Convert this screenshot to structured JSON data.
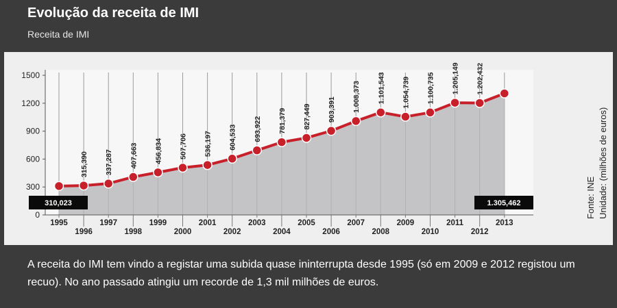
{
  "header": {
    "title": "Evolução da receita de IMI",
    "subtitle": "Receita de IMI"
  },
  "source": {
    "label": "Fonte: INE",
    "unit": "Unidade: (milhões de euros)"
  },
  "caption": "A receita do IMI tem vindo a registar uma subida quase ininterrupta desde 1995 (só em 2009 e 2012 registou um recuo). No ano passado atingiu um recorde de 1,3 mil milhões de euros.",
  "colors": {
    "background": "#3b3b3b",
    "panel": "#efefef",
    "area": "#c4c4c7",
    "line": "#c8202a",
    "marker": "#c8202a",
    "label_box": "#0a0a0a"
  },
  "chart_data": {
    "type": "area",
    "categories": [
      "1995",
      "1996",
      "1997",
      "1998",
      "1999",
      "2000",
      "2001",
      "2002",
      "2003",
      "2004",
      "2005",
      "2006",
      "2007",
      "2008",
      "2009",
      "2010",
      "2011",
      "2012",
      "2013"
    ],
    "series": [
      {
        "values": [
          310.023,
          315.39,
          337.287,
          407.663,
          456.834,
          507.706,
          536.197,
          604.533,
          693.922,
          781.379,
          827.449,
          903.391,
          1008.373,
          1101.543,
          1054.739,
          1100.735,
          1205.149,
          1202.432,
          1305.462
        ]
      }
    ],
    "data_labels": [
      "310,023",
      "315,390",
      "337,287",
      "407,663",
      "456,834",
      "507,706",
      "536,197",
      "604,533",
      "693,922",
      "781,379",
      "827,449",
      "903,391",
      "1.008,373",
      "1.101,543",
      "1.054,739",
      "1.100,735",
      "1.205,149",
      "1.202,432",
      "1.305,462"
    ],
    "yticks": [
      "0",
      "300",
      "600",
      "900",
      "1200",
      "1500"
    ],
    "ytick_values": [
      0,
      300,
      600,
      900,
      1200,
      1500
    ],
    "ylim": [
      0,
      1500
    ],
    "xlabel": "",
    "ylabel": "",
    "grid": "vertical",
    "legend": "none",
    "boxed_labels": [
      "first",
      "last"
    ],
    "x_label_staggered": true
  }
}
